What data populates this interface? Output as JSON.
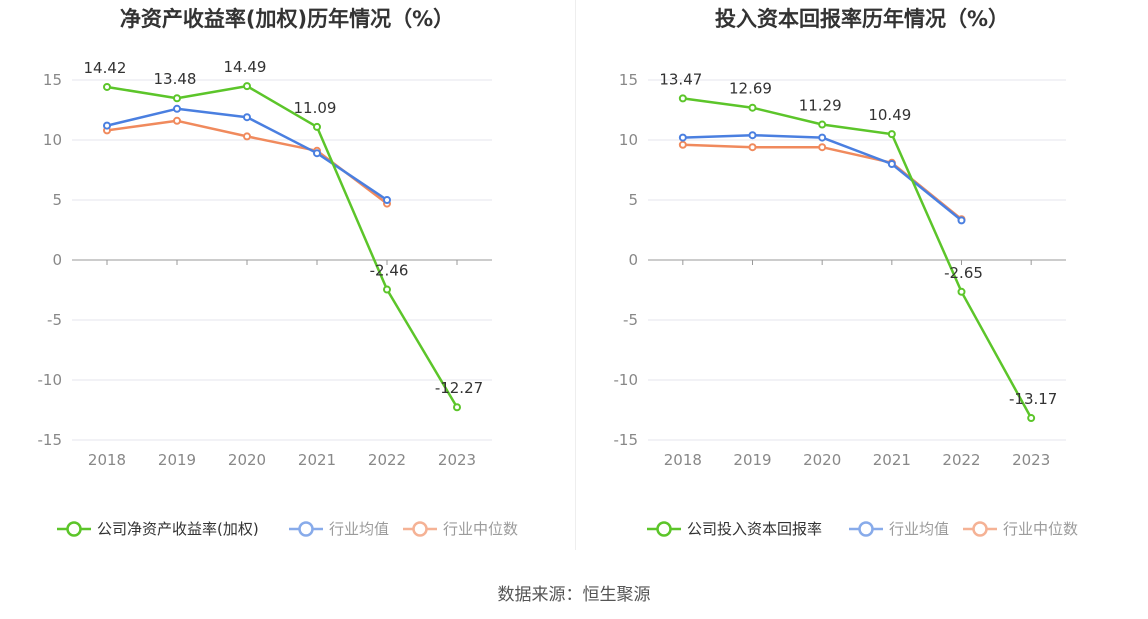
{
  "colors": {
    "company": "#5cc52a",
    "avg": "#4a7fe0",
    "median": "#f08a5d",
    "grid": "#e6e6ee",
    "axis": "#999999"
  },
  "source_text": "数据来源：恒生聚源",
  "chart_data": [
    {
      "type": "line",
      "title": "净资产收益率(加权)历年情况（%）",
      "categories": [
        "2018",
        "2019",
        "2020",
        "2021",
        "2022",
        "2023"
      ],
      "yticks": [
        15,
        10,
        5,
        0,
        -5,
        -10,
        -15
      ],
      "ylim": [
        -15,
        15
      ],
      "grid": true,
      "legend_position": "bottom",
      "series": [
        {
          "name": "公司净资产收益率(加权)",
          "values": [
            14.42,
            13.48,
            14.49,
            11.09,
            -2.46,
            -12.27
          ],
          "labels": [
            "14.42",
            "13.48",
            "14.49",
            "11.09",
            "-2.46",
            "-12.27"
          ]
        },
        {
          "name": "行业均值",
          "values": [
            11.2,
            12.6,
            11.9,
            8.9,
            5.0,
            null
          ]
        },
        {
          "name": "行业中位数",
          "values": [
            10.8,
            11.6,
            10.3,
            9.1,
            4.7,
            null
          ]
        }
      ]
    },
    {
      "type": "line",
      "title": "投入资本回报率历年情况（%）",
      "categories": [
        "2018",
        "2019",
        "2020",
        "2021",
        "2022",
        "2023"
      ],
      "yticks": [
        15,
        10,
        5,
        0,
        -5,
        -10,
        -15
      ],
      "ylim": [
        -15,
        15
      ],
      "grid": true,
      "legend_position": "bottom",
      "series": [
        {
          "name": "公司投入资本回报率",
          "values": [
            13.47,
            12.69,
            11.29,
            10.49,
            -2.65,
            -13.17
          ],
          "labels": [
            "13.47",
            "12.69",
            "11.29",
            "10.49",
            "-2.65",
            "-13.17"
          ]
        },
        {
          "name": "行业均值",
          "values": [
            10.2,
            10.4,
            10.2,
            8.0,
            3.3,
            null
          ]
        },
        {
          "name": "行业中位数",
          "values": [
            9.6,
            9.4,
            9.4,
            8.1,
            3.4,
            null
          ]
        }
      ]
    }
  ]
}
